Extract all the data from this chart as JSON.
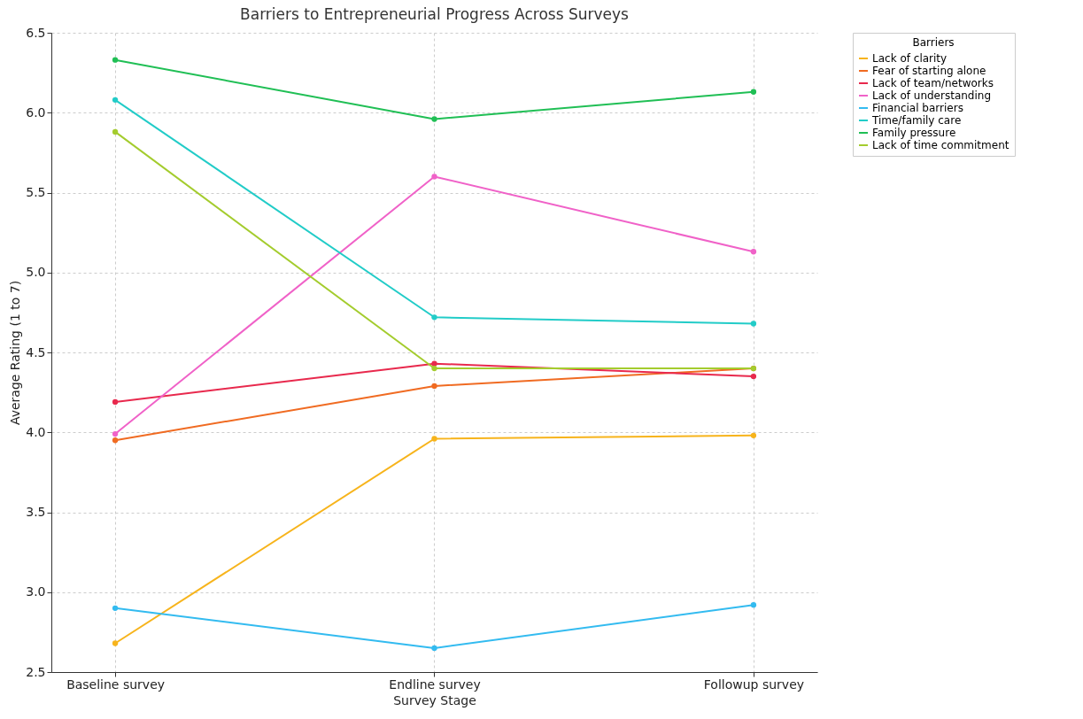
{
  "chart_data": {
    "type": "line",
    "title": "Barriers to Entrepreneurial Progress Across Surveys",
    "xlabel": "Survey Stage",
    "ylabel": "Average Rating (1 to 7)",
    "legend_title": "Barriers",
    "categories": [
      "Baseline survey",
      "Endline survey",
      "Followup survey"
    ],
    "series": [
      {
        "name": "Lack of clarity",
        "color": "#f7b41c",
        "values": [
          2.68,
          3.96,
          3.98
        ]
      },
      {
        "name": "Fear of starting alone",
        "color": "#f06b22",
        "values": [
          3.95,
          4.29,
          4.4
        ]
      },
      {
        "name": "Lack of team/networks",
        "color": "#e8294d",
        "values": [
          4.19,
          4.43,
          4.35
        ]
      },
      {
        "name": "Lack of understanding",
        "color": "#f062c8",
        "values": [
          3.99,
          5.6,
          5.13
        ]
      },
      {
        "name": "Financial barriers",
        "color": "#33bbf0",
        "values": [
          2.9,
          2.65,
          2.92
        ]
      },
      {
        "name": "Time/family care",
        "color": "#22ccc8",
        "values": [
          6.08,
          4.72,
          4.68
        ]
      },
      {
        "name": "Family pressure",
        "color": "#20bf55",
        "values": [
          6.33,
          5.96,
          6.13
        ]
      },
      {
        "name": "Lack of time commitment",
        "color": "#a4cc2e",
        "values": [
          5.88,
          4.4,
          4.4
        ]
      }
    ],
    "ylim": [
      2.5,
      6.5
    ],
    "yticks": [
      2.5,
      {
        "value": 3,
        "label": "3.0"
      },
      3.5,
      {
        "value": 4,
        "label": "4.0"
      },
      4.5,
      {
        "value": 5,
        "label": "5.0"
      },
      5.5,
      {
        "value": 6,
        "label": "6.0"
      },
      6.5
    ],
    "grid": true,
    "legend": "top right",
    "marker": "circle",
    "line_style": "solid"
  }
}
